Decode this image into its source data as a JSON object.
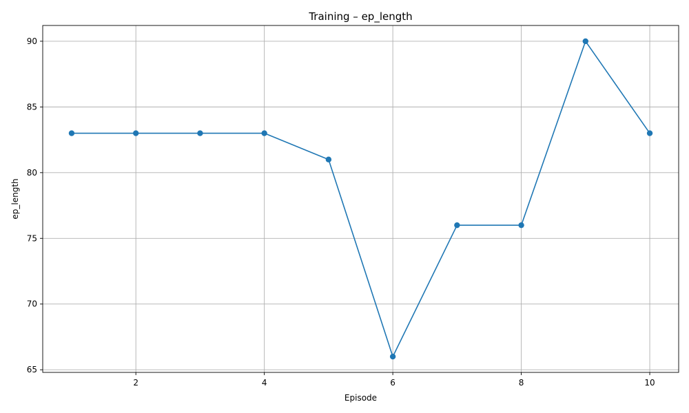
{
  "chart_data": {
    "type": "line",
    "title": "Training – ep_length",
    "xlabel": "Episode",
    "ylabel": "ep_length",
    "x": [
      1,
      2,
      3,
      4,
      5,
      6,
      7,
      8,
      9,
      10
    ],
    "series": [
      {
        "values": [
          83,
          83,
          83,
          83,
          81,
          66,
          76,
          76,
          90,
          83
        ],
        "color": "#1f77b4",
        "marker": "circle"
      }
    ],
    "xlim": [
      0.55,
      10.45
    ],
    "ylim": [
      64.8,
      91.2
    ],
    "xticks": [
      2,
      4,
      6,
      8,
      10
    ],
    "yticks": [
      65,
      70,
      75,
      80,
      85,
      90
    ],
    "grid": true,
    "legend": null
  }
}
